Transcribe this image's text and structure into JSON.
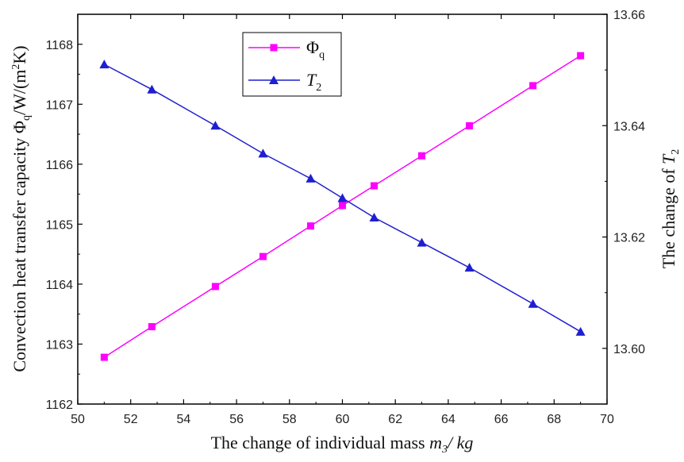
{
  "chart_data": {
    "type": "line",
    "x_axis": {
      "label_main": "The change of individual mass ",
      "label_var": "m",
      "label_sub": "3",
      "label_unit": "/ kg",
      "range": [
        50,
        70
      ],
      "ticks": [
        "50",
        "52",
        "54",
        "56",
        "58",
        "60",
        "62",
        "64",
        "66",
        "68",
        "70"
      ]
    },
    "y_left": {
      "label_main": "Convection heat transfer capacity Φ",
      "label_sub": "q",
      "label_unit": "/W/(m",
      "label_sup": "2",
      "label_end": "K)",
      "range": [
        1162,
        1168.5
      ],
      "ticks": [
        "1162",
        "1163",
        "1164",
        "1165",
        "1166",
        "1167",
        "1168"
      ]
    },
    "y_right": {
      "label_main": "The change of ",
      "label_var": "T",
      "label_sub": "2",
      "range": [
        13.59,
        13.66
      ],
      "ticks": [
        "13.60",
        "13.62",
        "13.64",
        "13.66"
      ]
    },
    "legend": {
      "position": "top-center"
    },
    "series": [
      {
        "name": "Φ",
        "name_sub": "q",
        "axis": "left",
        "color": "#ff00ff",
        "marker": "square",
        "x": [
          51.0,
          52.8,
          55.2,
          57.0,
          58.8,
          60.0,
          61.2,
          63.0,
          64.8,
          67.2,
          69.0
        ],
        "y": [
          1162.78,
          1163.29,
          1163.96,
          1164.46,
          1164.97,
          1165.31,
          1165.64,
          1166.14,
          1166.64,
          1167.31,
          1167.81
        ]
      },
      {
        "name": "T",
        "name_sub": "2",
        "axis": "right",
        "color": "#1f1fd0",
        "marker": "triangle",
        "x": [
          51.0,
          52.8,
          55.2,
          57.0,
          58.8,
          60.0,
          61.2,
          63.0,
          64.8,
          67.2,
          69.0
        ],
        "y": [
          13.651,
          13.6465,
          13.64,
          13.635,
          13.6305,
          13.627,
          13.6235,
          13.619,
          13.6145,
          13.608,
          13.603
        ]
      }
    ]
  }
}
